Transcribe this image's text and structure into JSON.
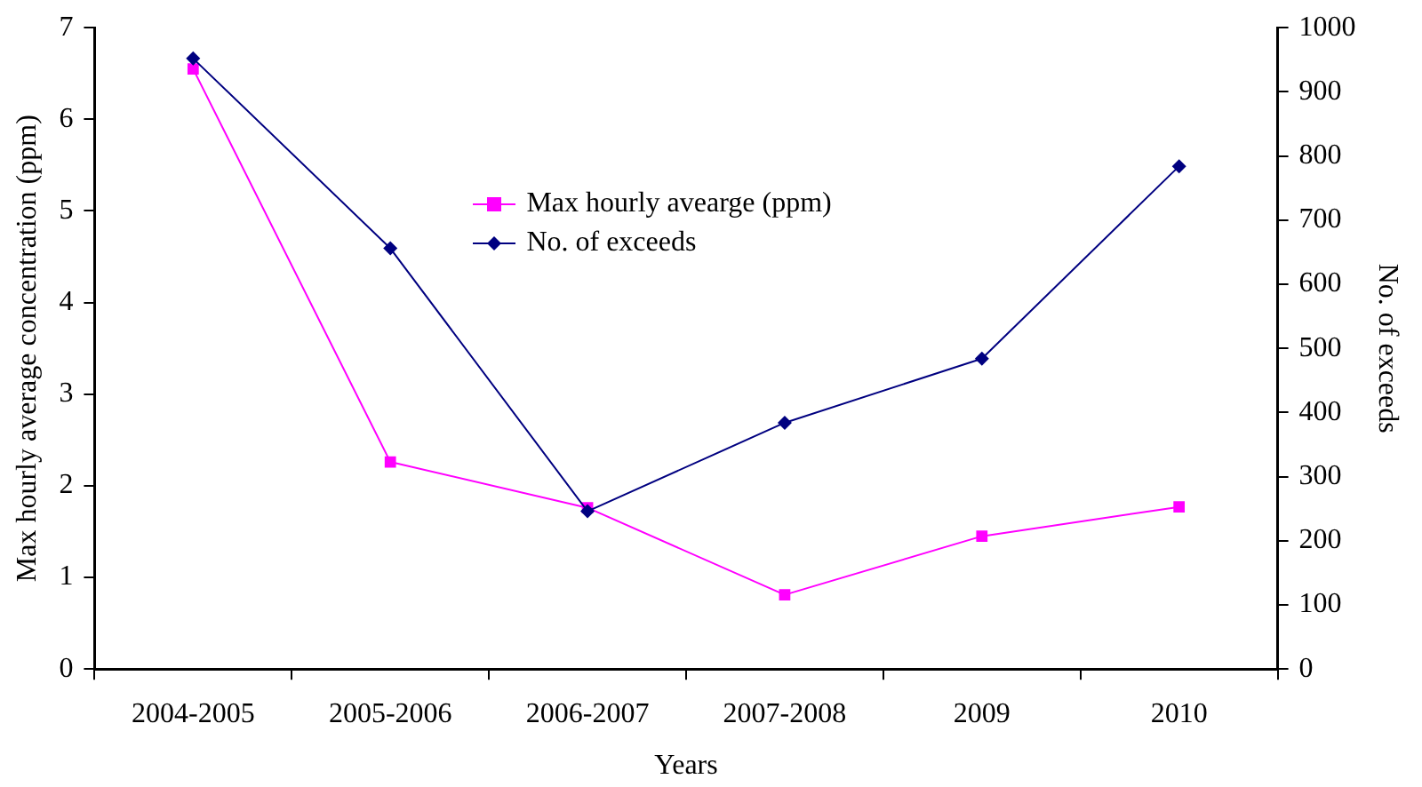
{
  "chart_data": {
    "type": "line",
    "xlabel": "Years",
    "ylabel": "Max hourly average concentration (ppm)",
    "y2label": "No. of exceeds",
    "categories": [
      "2004-2005",
      "2005-2006",
      "2006-2007",
      "2007-2008",
      "2009",
      "2010"
    ],
    "series": [
      {
        "name": "Max hourly avearge (ppm)",
        "color": "#ff00ff",
        "marker": "square",
        "values": [
          6.55,
          2.26,
          1.76,
          0.81,
          1.45,
          1.77
        ]
      },
      {
        "name": "No. of exceeds",
        "color": "#000080",
        "marker": "diamond",
        "axis": "y2",
        "values": [
          952,
          656,
          246,
          384,
          484,
          784
        ]
      }
    ],
    "ylim": [
      0,
      7
    ],
    "yticks": [
      0,
      1,
      2,
      3,
      4,
      5,
      6,
      7
    ],
    "y2lim": [
      0,
      1000
    ],
    "y2ticks": [
      0,
      100,
      200,
      300,
      400,
      500,
      600,
      700,
      800,
      900,
      1000
    ],
    "grid": false,
    "legend": "top",
    "line_style": "solid"
  }
}
